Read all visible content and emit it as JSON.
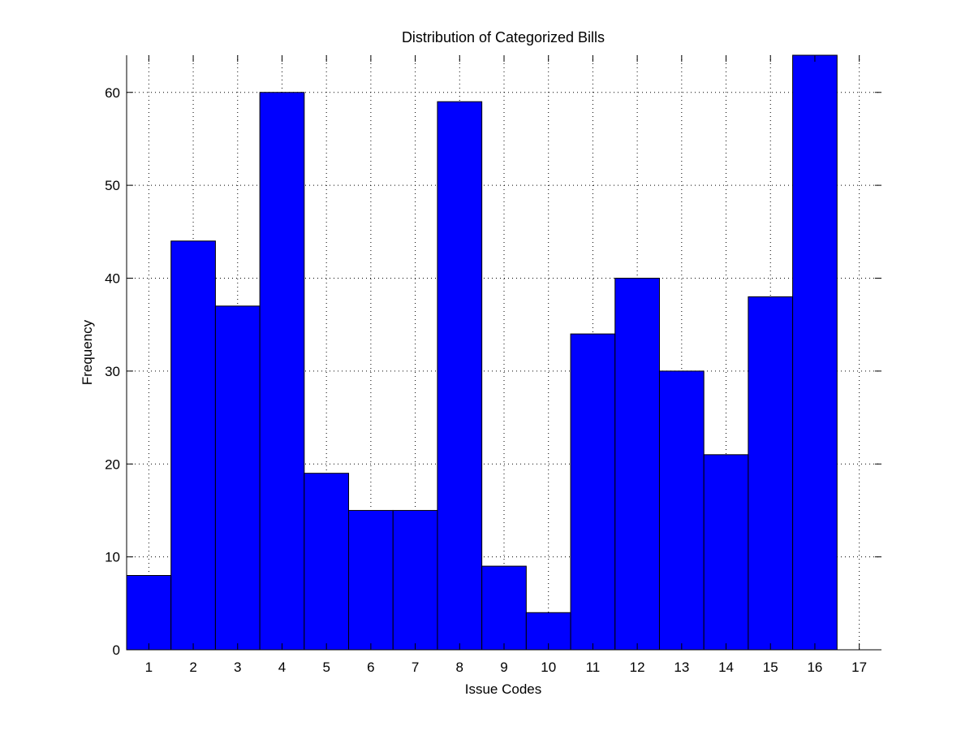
{
  "chart_data": {
    "type": "bar",
    "title": "Distribution of Categorized Bills",
    "xlabel": "Issue Codes",
    "ylabel": "Frequency",
    "categories": [
      "1",
      "2",
      "3",
      "4",
      "5",
      "6",
      "7",
      "8",
      "9",
      "10",
      "11",
      "12",
      "13",
      "14",
      "15",
      "16",
      "17"
    ],
    "values": [
      8,
      44,
      37,
      60,
      19,
      15,
      15,
      59,
      9,
      4,
      34,
      40,
      30,
      21,
      38,
      64,
      0
    ],
    "xlim": [
      0.5,
      17.5
    ],
    "ylim": [
      0,
      64
    ],
    "yticks": [
      0,
      10,
      20,
      30,
      40,
      50,
      60
    ],
    "grid": true,
    "grid_style": "dotted",
    "bar_color": "#0000ff",
    "edge_color": "#000000"
  }
}
